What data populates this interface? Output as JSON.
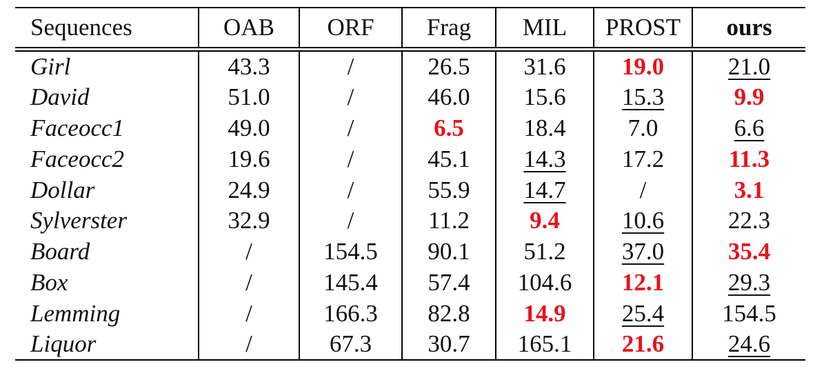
{
  "table": {
    "headers": [
      "Sequences",
      "OAB",
      "ORF",
      "Frag",
      "MIL",
      "PROST",
      "ours"
    ],
    "rows": [
      {
        "name": "Girl",
        "values": [
          "43.3",
          "/",
          "26.5",
          "31.6",
          "19.0",
          "21.0"
        ],
        "best": 4,
        "second": 5
      },
      {
        "name": "David",
        "values": [
          "51.0",
          "/",
          "46.0",
          "15.6",
          "15.3",
          "9.9"
        ],
        "best": 5,
        "second": 4
      },
      {
        "name": "Faceocc1",
        "values": [
          "49.0",
          "/",
          "6.5",
          "18.4",
          "7.0",
          "6.6"
        ],
        "best": 2,
        "second": 5
      },
      {
        "name": "Faceocc2",
        "values": [
          "19.6",
          "/",
          "45.1",
          "14.3",
          "17.2",
          "11.3"
        ],
        "best": 5,
        "second": 3
      },
      {
        "name": "Dollar",
        "values": [
          "24.9",
          "/",
          "55.9",
          "14.7",
          "/",
          "3.1"
        ],
        "best": 5,
        "second": 3
      },
      {
        "name": "Sylverster",
        "values": [
          "32.9",
          "/",
          "11.2",
          "9.4",
          "10.6",
          "22.3"
        ],
        "best": 3,
        "second": 4
      },
      {
        "name": "Board",
        "values": [
          "/",
          "154.5",
          "90.1",
          "51.2",
          "37.0",
          "35.4"
        ],
        "best": 5,
        "second": 4
      },
      {
        "name": "Box",
        "values": [
          "/",
          "145.4",
          "57.4",
          "104.6",
          "12.1",
          "29.3"
        ],
        "best": 4,
        "second": 5
      },
      {
        "name": "Lemming",
        "values": [
          "/",
          "166.3",
          "82.8",
          "14.9",
          "25.4",
          "154.5"
        ],
        "best": 3,
        "second": 4
      },
      {
        "name": "Liquor",
        "values": [
          "/",
          "67.3",
          "30.7",
          "165.1",
          "21.6",
          "24.6"
        ],
        "best": 4,
        "second": 5
      }
    ]
  },
  "colors": {
    "best": "#e8121d",
    "text": "#111111"
  }
}
